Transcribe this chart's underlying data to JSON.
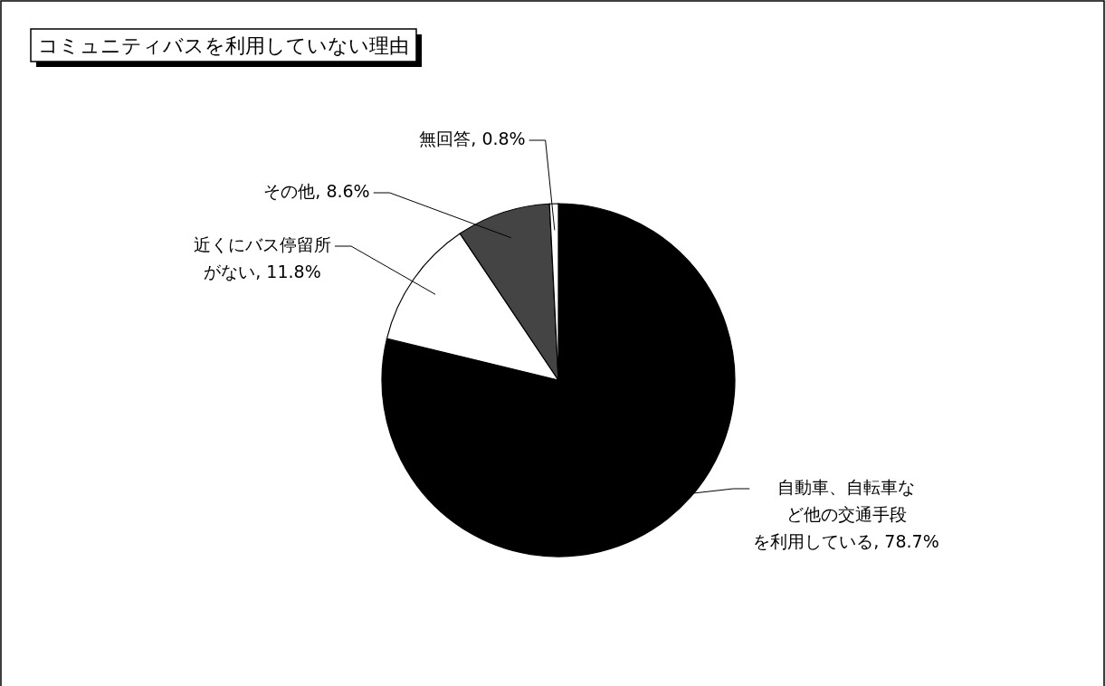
{
  "chart_data": {
    "type": "pie",
    "title": "コミュニティバスを利用していない理由",
    "categories": [
      "自動車、自転車など他の交通手段を利用している",
      "近くにバス停留所がない",
      "その他",
      "無回答"
    ],
    "values": [
      78.7,
      11.8,
      8.6,
      0.8
    ],
    "value_labels": [
      "78.7%",
      "11.8%",
      "8.6%",
      "0.8%"
    ],
    "colors": [
      "#000000",
      "#ffffff",
      "#444444",
      "#ffffff"
    ]
  }
}
